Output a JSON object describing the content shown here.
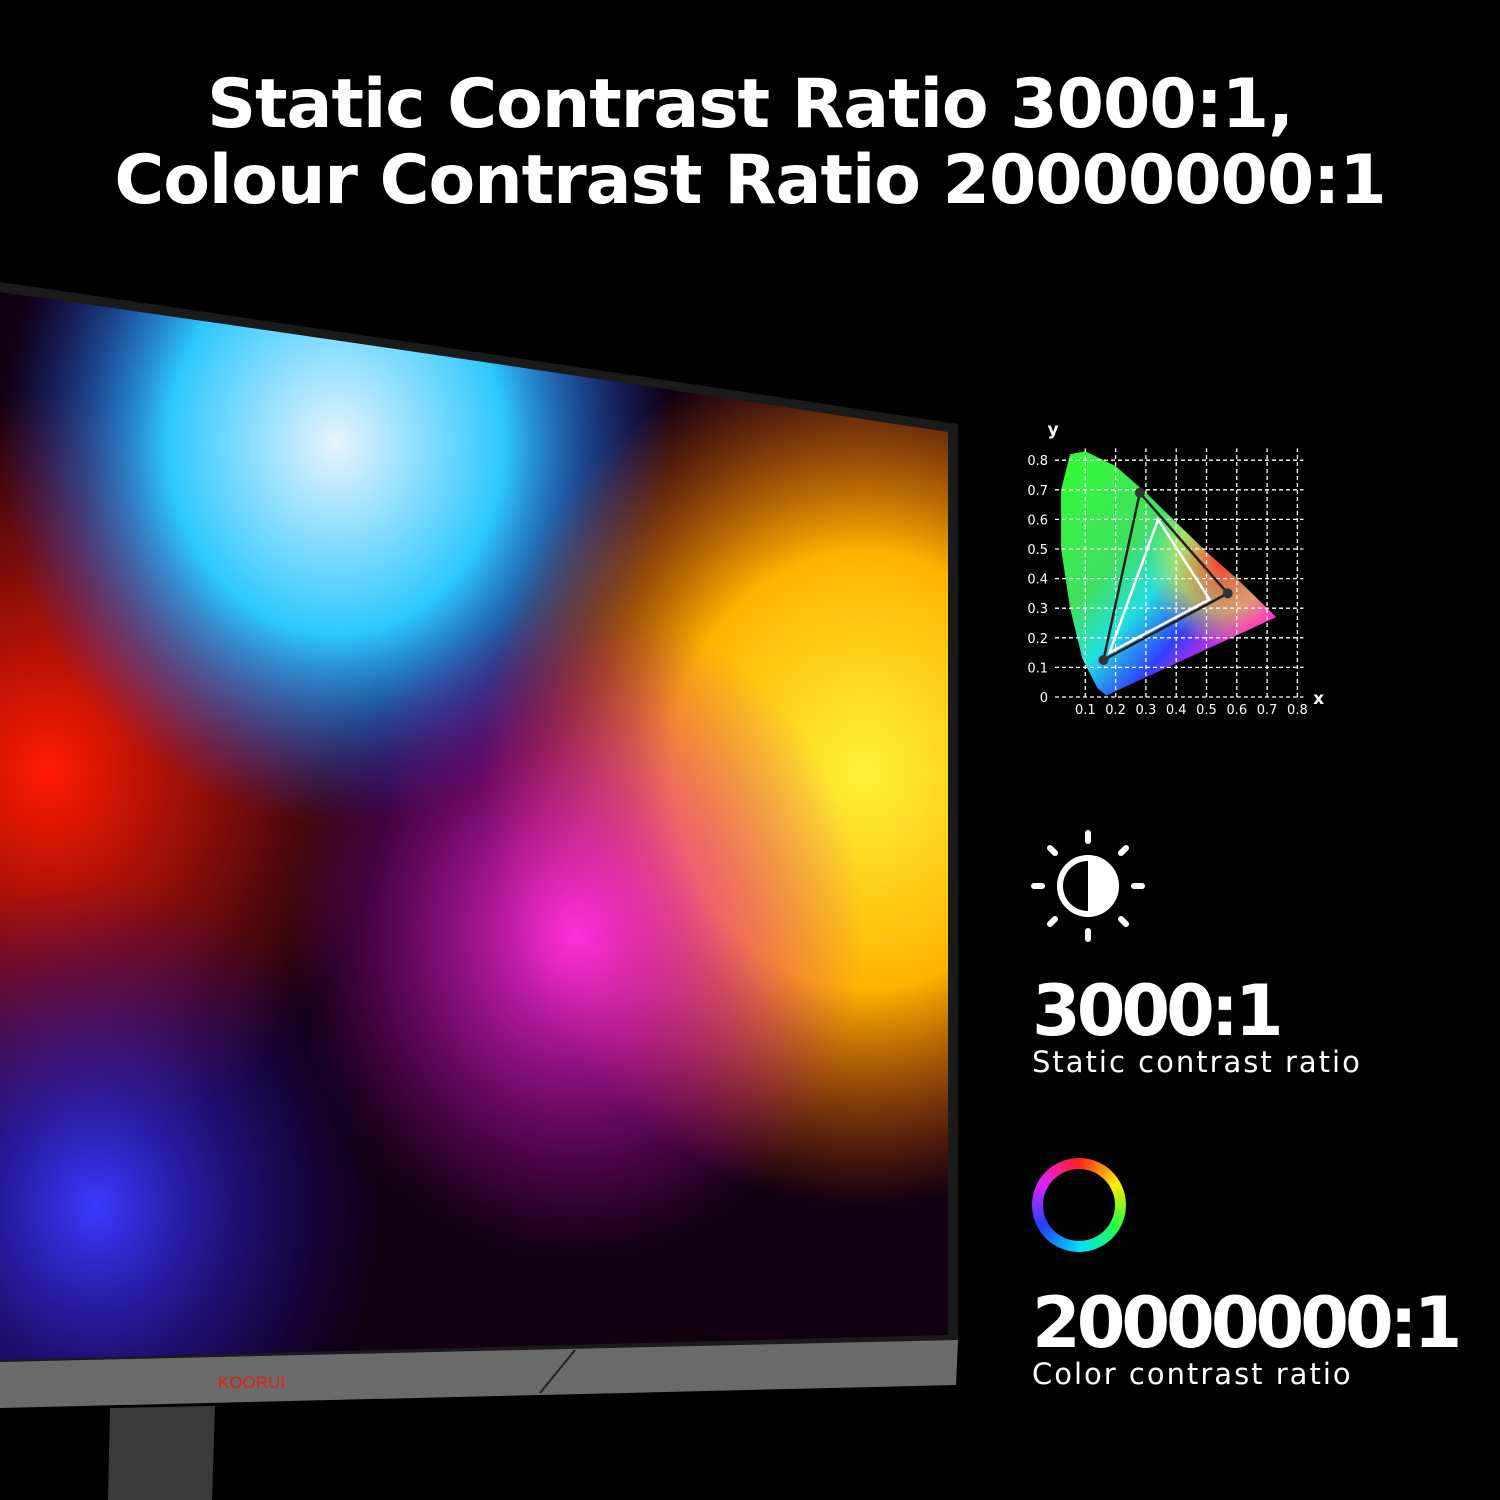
{
  "headline": {
    "line1": "Static Contrast Ratio 3000:1,",
    "line2": "Colour Contrast Ratio 20000000:1"
  },
  "brand": {
    "logo_text": "KOORUI",
    "logo_color": "#e0201c"
  },
  "stats": [
    {
      "icon": "contrast-sun-icon",
      "value": "3000:1",
      "label": "Static contrast ratio"
    },
    {
      "icon": "color-ring-icon",
      "value": "20000000:1",
      "label": "Color contrast ratio"
    }
  ],
  "chart_data": {
    "type": "scatter",
    "title": "",
    "xlabel": "x",
    "ylabel": "y",
    "xlim": [
      0,
      0.8
    ],
    "ylim": [
      0,
      0.8
    ],
    "x_ticks": [
      "0.1",
      "0.2",
      "0.3",
      "0.4",
      "0.5",
      "0.6",
      "0.7",
      "0.8"
    ],
    "y_ticks": [
      "0",
      "0.1",
      "0.2",
      "0.3",
      "0.4",
      "0.5",
      "0.6",
      "0.7",
      "0.8"
    ],
    "grid": true,
    "series": [
      {
        "points": [
          [
            0.28,
            0.69
          ],
          [
            0.57,
            0.35
          ],
          [
            0.16,
            0.125
          ]
        ],
        "color": "#222222"
      },
      {
        "points": [
          [
            0.34,
            0.6
          ],
          [
            0.51,
            0.33
          ],
          [
            0.18,
            0.15
          ]
        ],
        "color": "#ffffff"
      }
    ]
  }
}
